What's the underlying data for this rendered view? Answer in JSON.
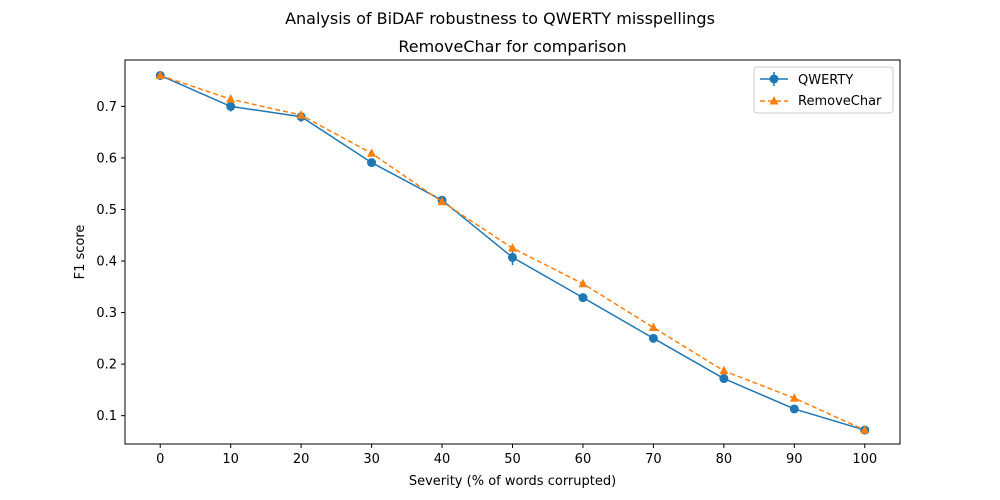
{
  "chart_data": {
    "type": "line",
    "suptitle": "Analysis of BiDAF robustness to QWERTY misspellings",
    "title": "RemoveChar for comparison",
    "xlabel": "Severity (% of words corrupted)",
    "ylabel": "F1 score",
    "xlim": [
      -5,
      105
    ],
    "ylim": [
      0.045,
      0.79
    ],
    "xticks": [
      0,
      10,
      20,
      30,
      40,
      50,
      60,
      70,
      80,
      90,
      100
    ],
    "yticks": [
      0.1,
      0.2,
      0.3,
      0.4,
      0.5,
      0.6,
      0.7
    ],
    "grid": false,
    "legend_position": "top-right",
    "x": [
      0,
      10,
      20,
      30,
      40,
      50,
      60,
      70,
      80,
      90,
      100
    ],
    "series": [
      {
        "name": "QWERTY",
        "color": "#1f77b4",
        "marker": "circle",
        "linestyle": "solid",
        "values": [
          0.76,
          0.7,
          0.68,
          0.591,
          0.518,
          0.407,
          0.329,
          0.25,
          0.172,
          0.113,
          0.072
        ],
        "errors": [
          0.006,
          0.01,
          0.01,
          0.004,
          0.008,
          0.015,
          0.004,
          0.004,
          0.004,
          0.003,
          0.004
        ]
      },
      {
        "name": "RemoveChar",
        "color": "#ff7f0e",
        "marker": "triangle",
        "linestyle": "dashed",
        "values": [
          0.76,
          0.714,
          0.683,
          0.609,
          0.515,
          0.425,
          0.356,
          0.271,
          0.187,
          0.134,
          0.072
        ]
      }
    ]
  }
}
